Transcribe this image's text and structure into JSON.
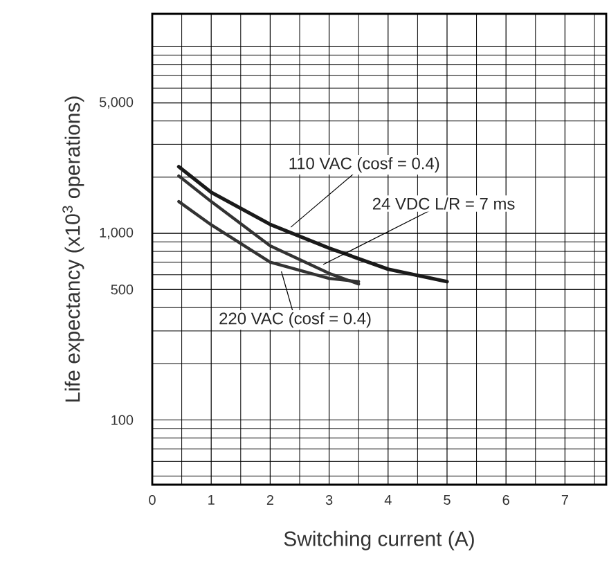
{
  "chart_data": {
    "type": "line",
    "xlabel": "Switching current (A)",
    "ylabel": "Life expectancy (x10$^{3}$ operations)",
    "x": [
      0.45,
      1,
      2,
      3,
      4,
      5
    ],
    "series": [
      {
        "color": "#1a1a1a",
        "values": [
          2275,
          1660,
          1117,
          833,
          643,
          551
        ]
      },
      {
        "color": "#333333",
        "x": [
          0.45,
          1,
          2,
          3,
          3.5
        ],
        "values": [
          2030,
          1480,
          858,
          610,
          535
        ]
      },
      {
        "color": "#333333",
        "x": [
          0.45,
          1,
          2,
          3,
          3.5
        ],
        "values": [
          1480,
          1111,
          701,
          573,
          551
        ]
      }
    ],
    "annotations": [
      {
        "text": "110 VAC (cosf = 0.4)",
        "x": 2.35,
        "y": 1079
      },
      {
        "text": "24 VDC L/R = 7 ms",
        "x": 2.9,
        "y": 681
      },
      {
        "text": "220 VAC (cosf = 0.4)",
        "x": 2.19,
        "y": 625
      }
    ],
    "xlim": [
      0,
      7.7
    ],
    "ylim": [
      45,
      15000
    ],
    "xticks": [
      0,
      1,
      2,
      3,
      4,
      5,
      6,
      7
    ],
    "yticks": [
      {
        "value": 100,
        "label": "100"
      },
      {
        "value": 500,
        "label": "500"
      },
      {
        "value": 1000,
        "label": "1,000"
      },
      {
        "value": 5000,
        "label": "5,000"
      }
    ],
    "log": "y",
    "grid": true,
    "marker": "none",
    "line_style": "solid"
  }
}
